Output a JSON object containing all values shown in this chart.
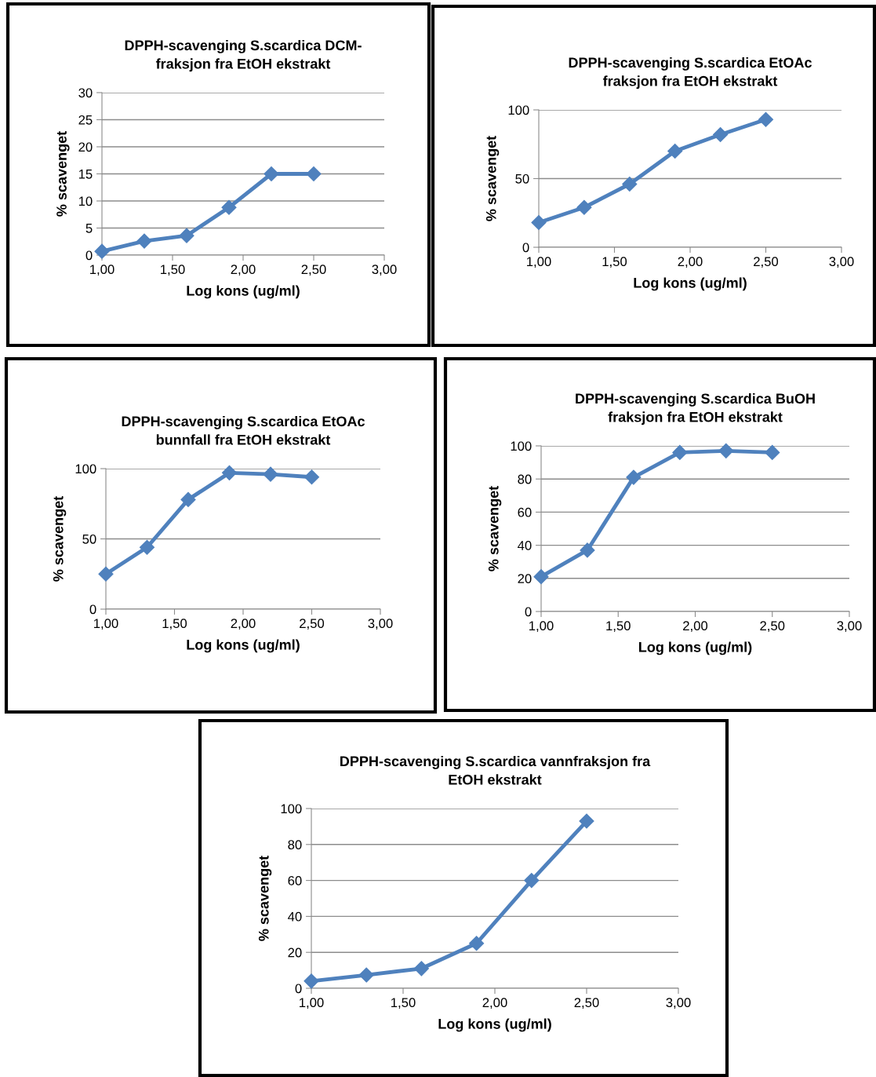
{
  "chart_data": [
    {
      "type": "line",
      "title": "DPPH-scavenging S.scardica DCM-\nfraksjon fra EtOH ekstrakt",
      "xlabel": "Log kons (ug/ml)",
      "ylabel": "% scavenget",
      "x": [
        1.0,
        1.3,
        1.6,
        1.9,
        2.2,
        2.5
      ],
      "series": [
        {
          "color": "#4f81bd",
          "values": [
            0.7,
            2.6,
            3.6,
            8.8,
            15,
            15
          ]
        }
      ],
      "xlim": [
        1,
        3
      ],
      "xticks": [
        {
          "value": 1,
          "label": "1,00"
        },
        {
          "value": 1.5,
          "label": "1,50"
        },
        {
          "value": 2,
          "label": "2,00"
        },
        {
          "value": 2.5,
          "label": "2,50"
        },
        {
          "value": 3,
          "label": "3,00"
        }
      ],
      "ylim": [
        0,
        30
      ],
      "yticks": [
        0,
        5,
        10,
        15,
        20,
        25,
        30
      ],
      "grid": "y",
      "marker": "diamond",
      "line_style": "solid",
      "legend": false
    },
    {
      "type": "line",
      "title": "DPPH-scavenging S.scardica EtOAc\nfraksjon fra EtOH ekstrakt",
      "xlabel": "Log kons (ug/ml)",
      "ylabel": "% scavenget",
      "x": [
        1.0,
        1.3,
        1.6,
        1.9,
        2.2,
        2.5
      ],
      "series": [
        {
          "color": "#4f81bd",
          "values": [
            18,
            29,
            46,
            70,
            82,
            93
          ]
        }
      ],
      "xlim": [
        1,
        3
      ],
      "xticks": [
        {
          "value": 1,
          "label": "1,00"
        },
        {
          "value": 1.5,
          "label": "1,50"
        },
        {
          "value": 2,
          "label": "2,00"
        },
        {
          "value": 2.5,
          "label": "2,50"
        },
        {
          "value": 3,
          "label": "3,00"
        }
      ],
      "ylim": [
        0,
        100
      ],
      "yticks": [
        0,
        50,
        100
      ],
      "grid": "y",
      "marker": "diamond",
      "line_style": "solid",
      "legend": false
    },
    {
      "type": "line",
      "title": "DPPH-scavenging S.scardica EtOAc\nbunnfall fra EtOH ekstrakt",
      "xlabel": "Log kons (ug/ml)",
      "ylabel": "% scavenget",
      "x": [
        1.0,
        1.3,
        1.6,
        1.9,
        2.2,
        2.5
      ],
      "series": [
        {
          "color": "#4f81bd",
          "values": [
            25,
            44,
            78,
            97,
            96,
            94
          ]
        }
      ],
      "xlim": [
        1,
        3
      ],
      "xticks": [
        {
          "value": 1,
          "label": "1,00"
        },
        {
          "value": 1.5,
          "label": "1,50"
        },
        {
          "value": 2,
          "label": "2,00"
        },
        {
          "value": 2.5,
          "label": "2,50"
        },
        {
          "value": 3,
          "label": "3,00"
        }
      ],
      "ylim": [
        0,
        100
      ],
      "yticks": [
        0,
        50,
        100
      ],
      "grid": "y",
      "marker": "diamond",
      "line_style": "solid",
      "legend": false
    },
    {
      "type": "line",
      "title": "DPPH-scavenging S.scardica BuOH\nfraksjon fra EtOH ekstrakt",
      "xlabel": "Log kons (ug/ml)",
      "ylabel": "% scavenget",
      "x": [
        1.0,
        1.3,
        1.6,
        1.9,
        2.2,
        2.5
      ],
      "series": [
        {
          "color": "#4f81bd",
          "values": [
            21,
            37,
            81,
            96,
            97,
            96
          ]
        }
      ],
      "xlim": [
        1,
        3
      ],
      "xticks": [
        {
          "value": 1,
          "label": "1,00"
        },
        {
          "value": 1.5,
          "label": "1,50"
        },
        {
          "value": 2,
          "label": "2,00"
        },
        {
          "value": 2.5,
          "label": "2,50"
        },
        {
          "value": 3,
          "label": "3,00"
        }
      ],
      "ylim": [
        0,
        100
      ],
      "yticks": [
        0,
        20,
        40,
        60,
        80,
        100
      ],
      "grid": "y",
      "marker": "diamond",
      "line_style": "solid",
      "legend": false
    },
    {
      "type": "line",
      "title": "DPPH-scavenging S.scardica vannfraksjon fra\nEtOH ekstrakt",
      "xlabel": "Log kons (ug/ml)",
      "ylabel": "% scavenget",
      "x": [
        1.0,
        1.3,
        1.6,
        1.9,
        2.2,
        2.5
      ],
      "series": [
        {
          "color": "#4f81bd",
          "values": [
            4,
            7.4,
            11,
            25,
            60,
            93
          ]
        }
      ],
      "xlim": [
        1,
        3
      ],
      "xticks": [
        {
          "value": 1,
          "label": "1,00"
        },
        {
          "value": 1.5,
          "label": "1,50"
        },
        {
          "value": 2,
          "label": "2,00"
        },
        {
          "value": 2.5,
          "label": "2,50"
        },
        {
          "value": 3,
          "label": "3,00"
        }
      ],
      "ylim": [
        0,
        100
      ],
      "yticks": [
        0,
        20,
        40,
        60,
        80,
        100
      ],
      "grid": "y",
      "marker": "diamond",
      "line_style": "solid",
      "legend": false
    }
  ]
}
